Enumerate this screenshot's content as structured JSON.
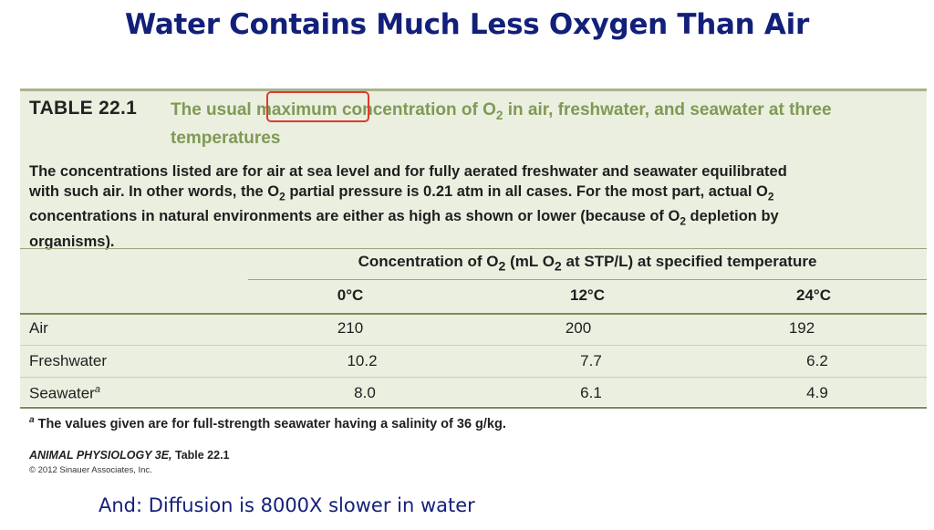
{
  "slide": {
    "title": "Water Contains Much Less Oxygen Than Air",
    "bottom_note": "And: Diffusion is 8000X slower in water"
  },
  "table": {
    "label": "TABLE 22.1",
    "caption_pre": "The usual ",
    "caption_highlight": "maximum",
    "caption_post_1": " concentration of O",
    "caption_sub": "2",
    "caption_post_2": " in air, freshwater, and seawater at three temperatures",
    "description": [
      "The concentrations listed are for air at sea level and for fully aerated freshwater and seawater equilibrated",
      "with such air. In other words, the O",
      "2",
      " partial pressure is 0.21 atm in all cases. For the most part, actual O",
      "2",
      "concentrations in natural environments are either as high as shown or lower (because of O",
      "2",
      " depletion by",
      "organisms)."
    ],
    "group_header_parts": [
      "Concentration of O",
      "2",
      " (mL O",
      "2",
      " at STP/L) at specified temperature"
    ],
    "columns": [
      "0°C",
      "12°C",
      "24°C"
    ],
    "rows": [
      {
        "label": "Air",
        "values": [
          "210",
          "200",
          "192"
        ]
      },
      {
        "label": "Freshwater",
        "values": [
          "10.2",
          "7.7",
          "6.2"
        ]
      },
      {
        "label": "Seawater",
        "label_sup": "a",
        "values": [
          "8.0",
          "6.1",
          "4.9"
        ]
      }
    ],
    "footnote_sup": "a",
    "footnote": " The values given are for full-strength seawater having a salinity of 36 g/kg."
  },
  "source": {
    "title_italic": "ANIMAL PHYSIOLOGY 3E,",
    "title_rest": " Table 22.1",
    "copyright": "© 2012 Sinauer Associates, Inc."
  },
  "colors": {
    "title": "#12207a",
    "caption": "#7f9a55",
    "panel_bg": "#ebefe0",
    "highlight_border": "#e03a2a"
  }
}
